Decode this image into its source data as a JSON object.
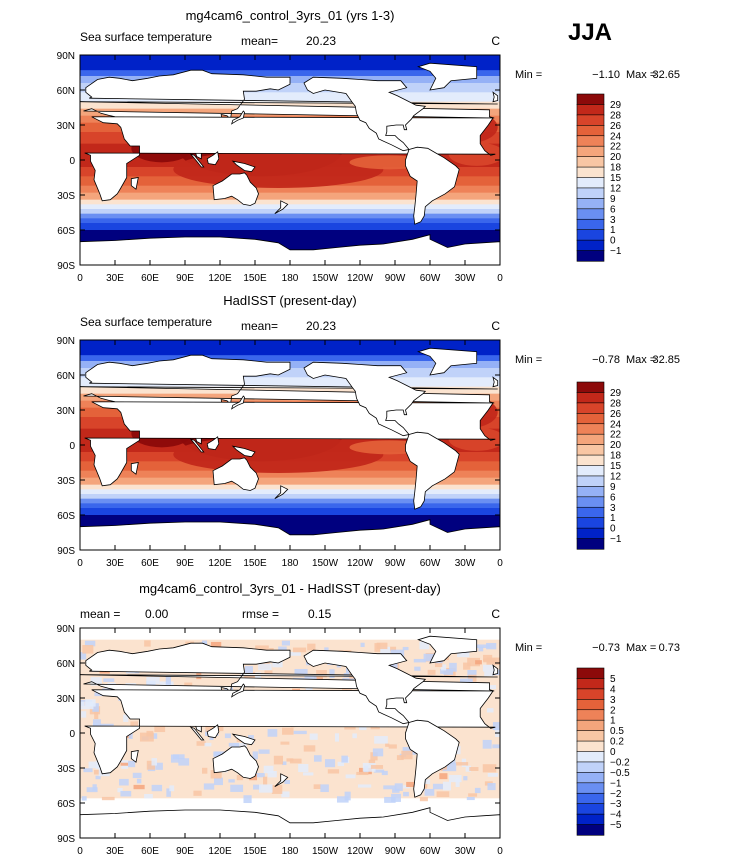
{
  "season": "JJA",
  "axes": {
    "lat_labels": [
      "90N",
      "60N",
      "30N",
      "0",
      "30S",
      "60S",
      "90S"
    ],
    "lon_labels": [
      "0",
      "30E",
      "60E",
      "90E",
      "120E",
      "150E",
      "180",
      "150W",
      "120W",
      "90W",
      "60W",
      "30W",
      "0"
    ]
  },
  "colors": {
    "land": "#ffffff",
    "warm_scale": [
      "#00007f",
      "#0022c8",
      "#1a45e0",
      "#3a66ec",
      "#6a8ff2",
      "#95b1f6",
      "#c0d2f9",
      "#e3ecfc",
      "#fbe3cf",
      "#f8c6a4",
      "#f4a57c",
      "#ee8258",
      "#e4623a",
      "#d8442a",
      "#c2281a",
      "#8c0a0a"
    ],
    "diff_scale": [
      "#00007f",
      "#0022c8",
      "#1a45e0",
      "#3a66ec",
      "#6a8ff2",
      "#95b1f6",
      "#c0d2f9",
      "#e3ecfc",
      "#fbe3cf",
      "#f8c6a4",
      "#f4a57c",
      "#ee8258",
      "#e4623a",
      "#d8442a",
      "#c2281a",
      "#8c0a0a"
    ]
  },
  "panels": [
    {
      "id": "model",
      "title": "mg4cam6_control_3yrs_01 (yrs 1-3)",
      "left_label": "Sea surface temperature",
      "mean_label": "mean=",
      "mean_value": "20.23",
      "rmse_label": "",
      "rmse_value": "",
      "units": "C",
      "min_label": "Min =",
      "min_value": "−1.10",
      "max_label": "Max =",
      "max_value": "32.65",
      "scale": "warm",
      "colorbar_labels": [
        "29",
        "28",
        "26",
        "24",
        "22",
        "20",
        "18",
        "15",
        "12",
        "9",
        "6",
        "3",
        "1",
        "0",
        "−1"
      ]
    },
    {
      "id": "obs",
      "title": "HadISST (present-day)",
      "left_label": "Sea surface temperature",
      "mean_label": "mean=",
      "mean_value": "20.23",
      "rmse_label": "",
      "rmse_value": "",
      "units": "C",
      "min_label": "Min =",
      "min_value": "−0.78",
      "max_label": "Max =",
      "max_value": "32.85",
      "scale": "warm",
      "colorbar_labels": [
        "29",
        "28",
        "26",
        "24",
        "22",
        "20",
        "18",
        "15",
        "12",
        "9",
        "6",
        "3",
        "1",
        "0",
        "−1"
      ]
    },
    {
      "id": "diff",
      "title": "mg4cam6_control_3yrs_01 - HadISST (present-day)",
      "left_label": "",
      "mean_label": "mean =",
      "mean_value": "0.00",
      "rmse_label": "rmse =",
      "rmse_value": "0.15",
      "units": "C",
      "min_label": "Min =",
      "min_value": "−0.73",
      "max_label": "Max =",
      "max_value": "0.73",
      "scale": "diff",
      "colorbar_labels": [
        "5",
        "4",
        "3",
        "2",
        "1",
        "0.5",
        "0.2",
        "0",
        "−0.2",
        "−0.5",
        "−1",
        "−2",
        "−3",
        "−4",
        "−5"
      ]
    }
  ]
}
